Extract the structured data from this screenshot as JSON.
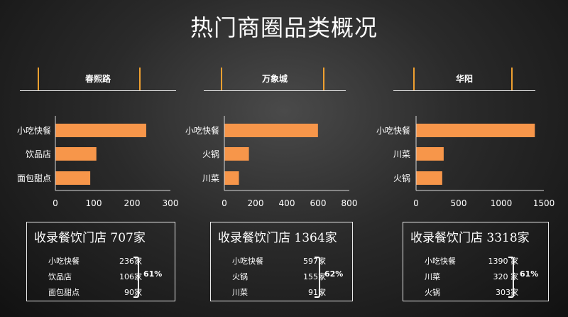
{
  "title": "热门商圈品类概况",
  "chart_data": [
    {
      "type": "bar",
      "title": "春熙路",
      "categories": [
        "小吃快餐",
        "饮品店",
        "面包甜点"
      ],
      "values": [
        236,
        106,
        90
      ],
      "xlim": [
        0,
        300
      ],
      "xticks": [
        "0",
        "100",
        "200",
        "300"
      ],
      "xtick_values": [
        0,
        100,
        200,
        300
      ],
      "summary": {
        "title": "收录餐饮门店 707家",
        "rows": [
          {
            "cat": "小吃快餐",
            "count": "236家"
          },
          {
            "cat": "饮品店",
            "count": "106家"
          },
          {
            "cat": "面包甜点",
            "count": "90家"
          }
        ],
        "share": "61%"
      }
    },
    {
      "type": "bar",
      "title": "万象城",
      "categories": [
        "小吃快餐",
        "火锅",
        "川菜"
      ],
      "values": [
        597,
        155,
        91
      ],
      "xlim": [
        0,
        800
      ],
      "xticks": [
        "0",
        "200",
        "400",
        "600",
        "800"
      ],
      "xtick_values": [
        0,
        200,
        400,
        600,
        800
      ],
      "summary": {
        "title": "收录餐饮门店 1364家",
        "rows": [
          {
            "cat": "小吃快餐",
            "count": "597家"
          },
          {
            "cat": "火锅",
            "count": "155家"
          },
          {
            "cat": "川菜",
            "count": "91家"
          }
        ],
        "share": "62%"
      }
    },
    {
      "type": "bar",
      "title": "华阳",
      "categories": [
        "小吃快餐",
        "川菜",
        "火锅"
      ],
      "values": [
        1390,
        320,
        303
      ],
      "xlim": [
        0,
        1500
      ],
      "xticks": [
        "0",
        "500",
        "1000",
        "1500"
      ],
      "xtick_values": [
        0,
        500,
        1000,
        1500
      ],
      "summary": {
        "title": "收录餐饮门店 3318家",
        "rows": [
          {
            "cat": "小吃快餐",
            "count": "1390 家"
          },
          {
            "cat": "川菜",
            "count": "320 家"
          },
          {
            "cat": "火锅",
            "count": "303家"
          }
        ],
        "share": "61%"
      }
    }
  ],
  "colors": {
    "bar": "#f7964a",
    "accent": "#f0a030",
    "axis": "#d8d8d8"
  }
}
